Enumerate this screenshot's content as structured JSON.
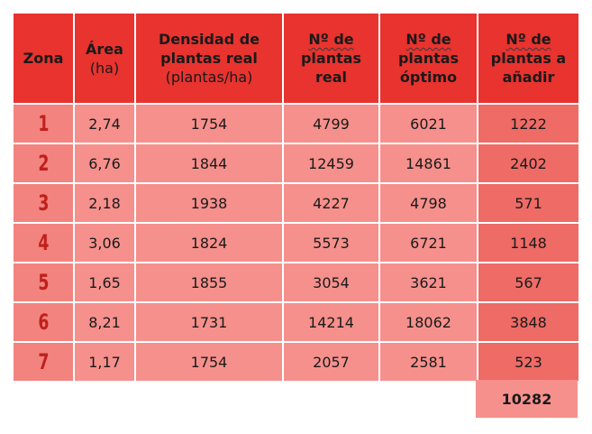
{
  "headers": {
    "zona": "Zona",
    "area": "Área",
    "area_unit": "(ha)",
    "densidad_1": "Densidad de",
    "densidad_2": "plantas real",
    "densidad_unit": "(plantas/ha)",
    "real_1": "Nº de",
    "real_2": "plantas",
    "real_3": "real",
    "optimo_1": "Nº de",
    "optimo_2": "plantas",
    "optimo_3": "óptimo",
    "anadir_1": "Nº de",
    "anadir_2": "plantas a",
    "anadir_3": "añadir"
  },
  "rows": [
    {
      "zona": "1",
      "area": "2,74",
      "densidad": "1754",
      "real": "4799",
      "optimo": "6021",
      "anadir": "1222"
    },
    {
      "zona": "2",
      "area": "6,76",
      "densidad": "1844",
      "real": "12459",
      "optimo": "14861",
      "anadir": "2402"
    },
    {
      "zona": "3",
      "area": "2,18",
      "densidad": "1938",
      "real": "4227",
      "optimo": "4798",
      "anadir": "571"
    },
    {
      "zona": "4",
      "area": "3,06",
      "densidad": "1824",
      "real": "5573",
      "optimo": "6721",
      "anadir": "1148"
    },
    {
      "zona": "5",
      "area": "1,65",
      "densidad": "1855",
      "real": "3054",
      "optimo": "3621",
      "anadir": "567"
    },
    {
      "zona": "6",
      "area": "8,21",
      "densidad": "1731",
      "real": "14214",
      "optimo": "18062",
      "anadir": "3848"
    },
    {
      "zona": "7",
      "area": "1,17",
      "densidad": "1754",
      "real": "2057",
      "optimo": "2581",
      "anadir": "523"
    }
  ],
  "total": "10282",
  "colors": {
    "header": "#e8332f",
    "cell": "#f6908c",
    "zone_cell": "#f3837f",
    "add_cell": "#ee6b66",
    "zone_text": "#c0201c"
  }
}
